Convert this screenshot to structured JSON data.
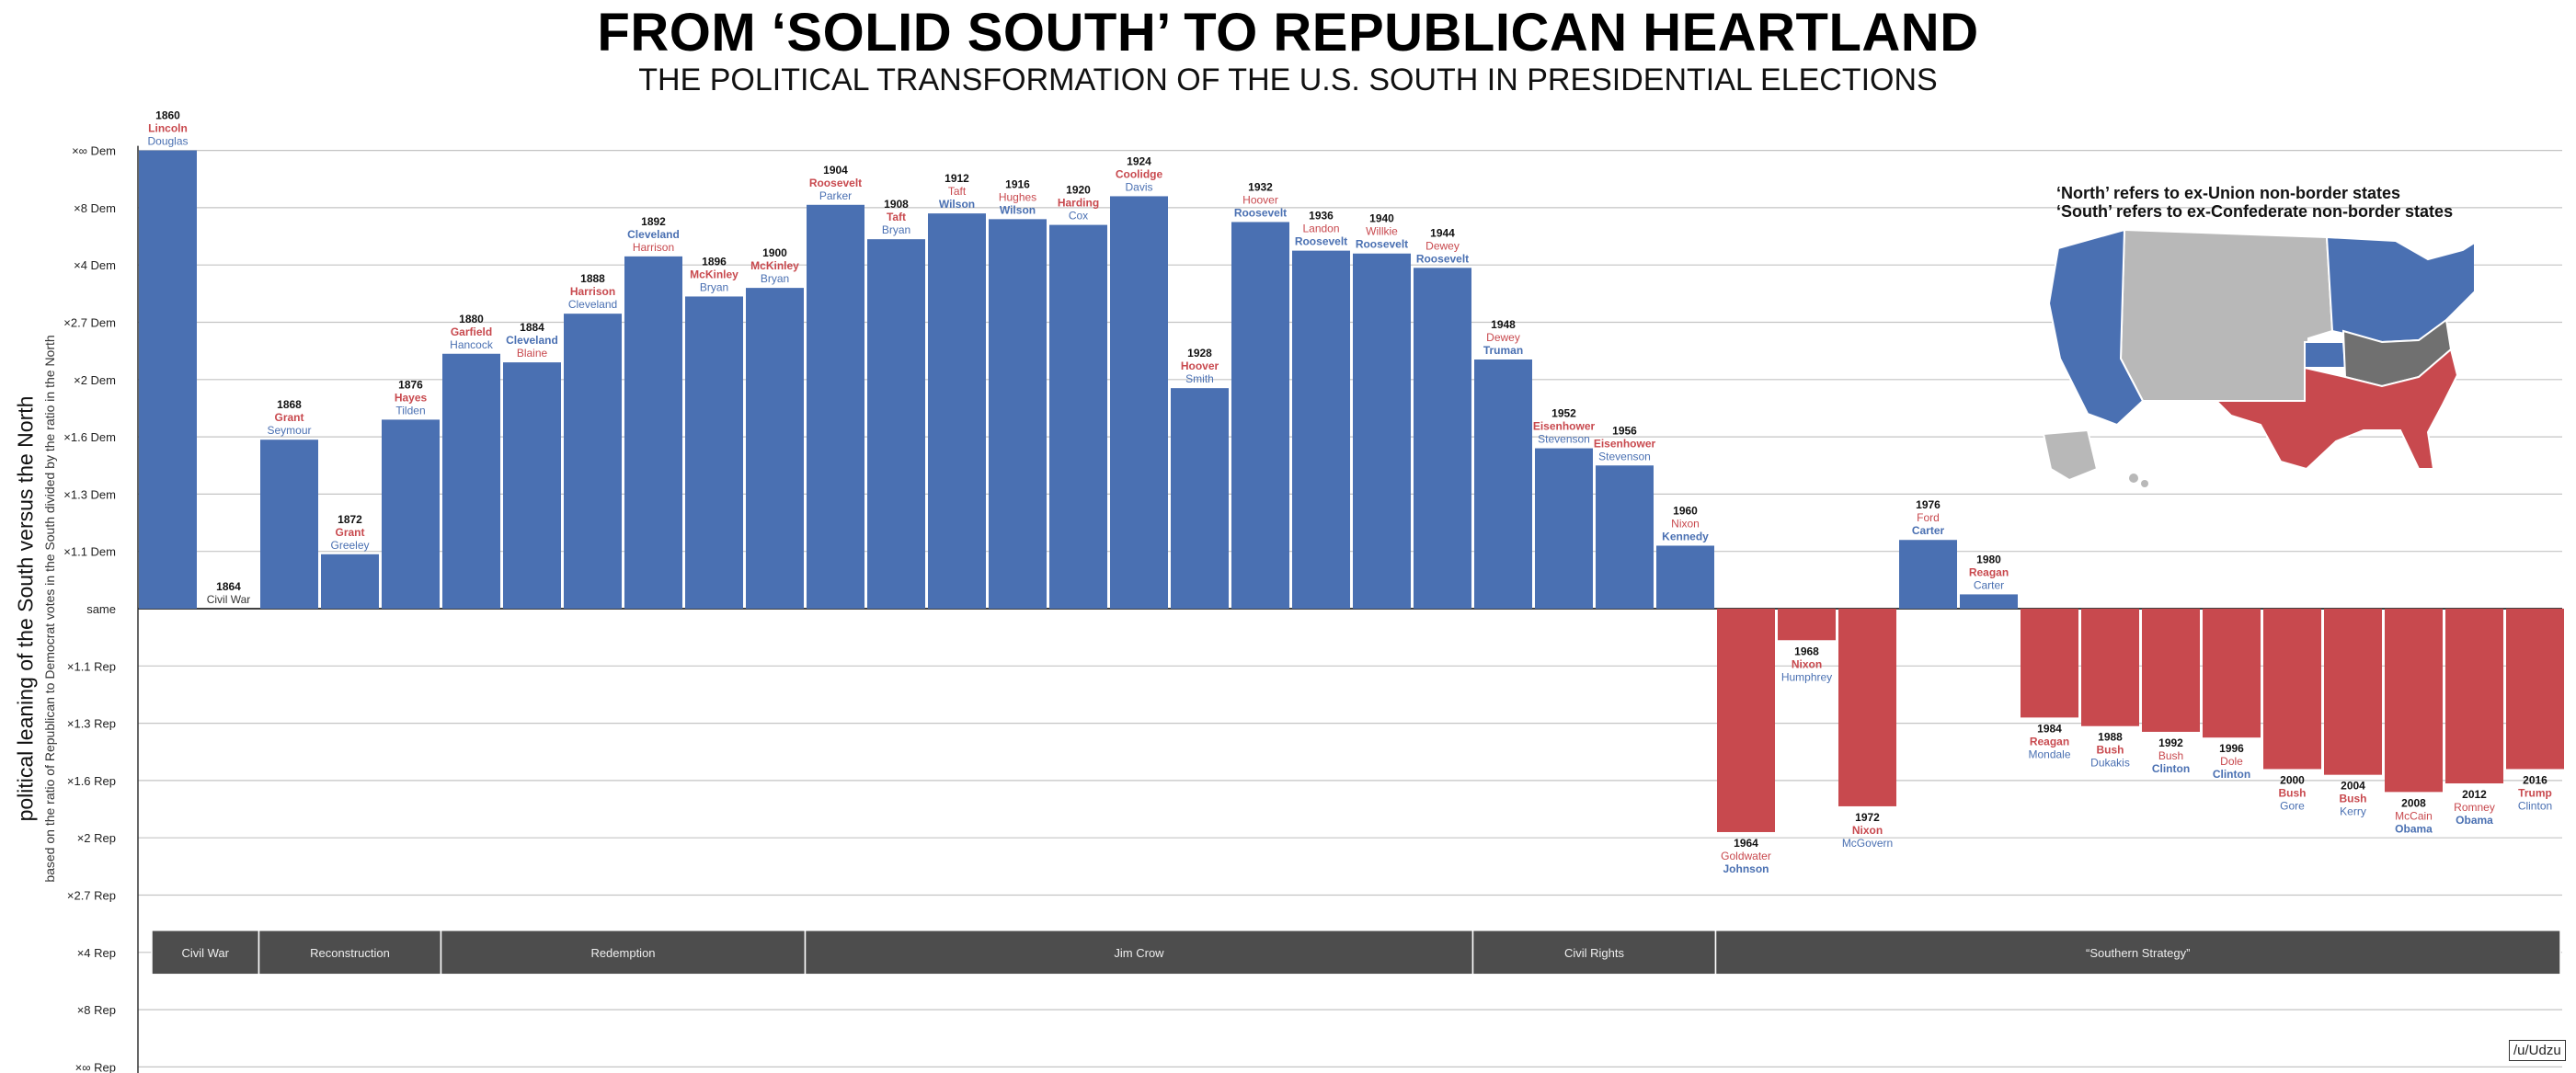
{
  "title": "FROM ‘SOLID SOUTH’ TO REPUBLICAN HEARTLAND",
  "subtitle": "THE POLITICAL TRANSFORMATION OF THE U.S. SOUTH IN PRESIDENTIAL ELECTIONS",
  "map_caption": [
    "‘North’ refers to ex-Union non-border states",
    "‘South’ refers to ex-Confederate non-border states"
  ],
  "credit": "/u/Udzu",
  "colors": {
    "dem": "#4a70b2",
    "rep": "#c8494e",
    "era_bg": "#4d4d4d",
    "map_gray": "#b8b8b8",
    "map_dark": "#707070"
  },
  "chart_data": {
    "type": "bar",
    "title": "FROM ‘SOLID SOUTH’ TO REPUBLICAN HEARTLAND",
    "subtitle": "THE POLITICAL TRANSFORMATION OF THE U.S. SOUTH IN PRESIDENTIAL ELECTIONS",
    "ylabel": "political leaning of the South versus the North",
    "ylabel_sub": "based on the ratio of Republican to Democrat votes in the South divided by the ratio in the North",
    "y_scale": "log (ratio)",
    "y_ticks": [
      "×∞ Dem",
      "×8 Dem",
      "×4 Dem",
      "×2.7 Dem",
      "×2 Dem",
      "×1.6 Dem",
      "×1.3 Dem",
      "×1.1 Dem",
      "same",
      "×1.1 Rep",
      "×1.3 Rep",
      "×1.6 Rep",
      "×2 Rep",
      "×2.7 Rep",
      "×4 Rep",
      "×8 Rep",
      "×∞ Rep"
    ],
    "value_units": "tick steps from 'same' (positive = South more Democratic)",
    "grid": true,
    "bars": [
      {
        "year": "1860",
        "value": 8.0,
        "winner": "Lincoln",
        "winner_party": "rep",
        "loser": "Douglas",
        "loser_party": "dem"
      },
      {
        "year": "1864",
        "value": 0,
        "note": "Civil War"
      },
      {
        "year": "1868",
        "value": 2.95,
        "winner": "Grant",
        "winner_party": "rep",
        "loser": "Seymour",
        "loser_party": "dem"
      },
      {
        "year": "1872",
        "value": 0.95,
        "winner": "Grant",
        "winner_party": "rep",
        "loser": "Greeley",
        "loser_party": "dem"
      },
      {
        "year": "1876",
        "value": 3.3,
        "winner": "Hayes",
        "winner_party": "rep",
        "loser": "Tilden",
        "loser_party": "dem"
      },
      {
        "year": "1880",
        "value": 4.45,
        "winner": "Garfield",
        "winner_party": "rep",
        "loser": "Hancock",
        "loser_party": "dem"
      },
      {
        "year": "1884",
        "value": 4.3,
        "winner": "Cleveland",
        "winner_party": "dem",
        "loser": "Blaine",
        "loser_party": "rep"
      },
      {
        "year": "1888",
        "value": 5.15,
        "winner": "Harrison",
        "winner_party": "rep",
        "loser": "Cleveland",
        "loser_party": "dem"
      },
      {
        "year": "1892",
        "value": 6.15,
        "winner": "Cleveland",
        "winner_party": "dem",
        "loser": "Harrison",
        "loser_party": "rep"
      },
      {
        "year": "1896",
        "value": 5.45,
        "winner": "McKinley",
        "winner_party": "rep",
        "loser": "Bryan",
        "loser_party": "dem"
      },
      {
        "year": "1900",
        "value": 5.6,
        "winner": "McKinley",
        "winner_party": "rep",
        "loser": "Bryan",
        "loser_party": "dem"
      },
      {
        "year": "1904",
        "value": 7.05,
        "winner": "Roosevelt",
        "winner_party": "rep",
        "loser": "Parker",
        "loser_party": "dem"
      },
      {
        "year": "1908",
        "value": 6.45,
        "winner": "Taft",
        "winner_party": "rep",
        "loser": "Bryan",
        "loser_party": "dem"
      },
      {
        "year": "1912",
        "value": 6.9,
        "winner": "Wilson",
        "winner_party": "dem",
        "loser": "Taft",
        "loser_party": "rep",
        "order": "loser_first"
      },
      {
        "year": "1916",
        "value": 6.8,
        "winner": "Wilson",
        "winner_party": "dem",
        "loser": "Hughes",
        "loser_party": "rep",
        "order": "loser_first"
      },
      {
        "year": "1920",
        "value": 6.7,
        "winner": "Harding",
        "winner_party": "rep",
        "loser": "Cox",
        "loser_party": "dem"
      },
      {
        "year": "1924",
        "value": 7.2,
        "winner": "Coolidge",
        "winner_party": "rep",
        "loser": "Davis",
        "loser_party": "dem"
      },
      {
        "year": "1928",
        "value": 3.85,
        "winner": "Hoover",
        "winner_party": "rep",
        "loser": "Smith",
        "loser_party": "dem"
      },
      {
        "year": "1932",
        "value": 6.75,
        "winner": "Roosevelt",
        "winner_party": "dem",
        "loser": "Hoover",
        "loser_party": "rep",
        "order": "loser_first"
      },
      {
        "year": "1936",
        "value": 6.25,
        "winner": "Roosevelt",
        "winner_party": "dem",
        "loser": "Landon",
        "loser_party": "rep",
        "order": "loser_first"
      },
      {
        "year": "1940",
        "value": 6.2,
        "winner": "Roosevelt",
        "winner_party": "dem",
        "loser": "Willkie",
        "loser_party": "rep",
        "order": "loser_first"
      },
      {
        "year": "1944",
        "value": 5.95,
        "winner": "Roosevelt",
        "winner_party": "dem",
        "loser": "Dewey",
        "loser_party": "rep",
        "order": "loser_first"
      },
      {
        "year": "1948",
        "value": 4.35,
        "winner": "Truman",
        "winner_party": "dem",
        "loser": "Dewey",
        "loser_party": "rep",
        "order": "loser_first"
      },
      {
        "year": "1952",
        "value": 2.8,
        "winner": "Eisenhower",
        "winner_party": "rep",
        "loser": "Stevenson",
        "loser_party": "dem"
      },
      {
        "year": "1956",
        "value": 2.5,
        "winner": "Eisenhower",
        "winner_party": "rep",
        "loser": "Stevenson",
        "loser_party": "dem"
      },
      {
        "year": "1960",
        "value": 1.1,
        "winner": "Kennedy",
        "winner_party": "dem",
        "loser": "Nixon",
        "loser_party": "rep",
        "order": "loser_first"
      },
      {
        "year": "1964",
        "value": -3.9,
        "winner": "Johnson",
        "winner_party": "dem",
        "loser": "Goldwater",
        "loser_party": "rep",
        "order": "loser_first"
      },
      {
        "year": "1968",
        "value": -0.55,
        "winner": "Nixon",
        "winner_party": "rep",
        "loser": "Humphrey",
        "loser_party": "dem"
      },
      {
        "year": "1972",
        "value": -3.45,
        "winner": "Nixon",
        "winner_party": "rep",
        "loser": "McGovern",
        "loser_party": "dem"
      },
      {
        "year": "1976",
        "value": 1.2,
        "winner": "Carter",
        "winner_party": "dem",
        "loser": "Ford",
        "loser_party": "rep",
        "order": "loser_first"
      },
      {
        "year": "1980",
        "value": 0.25,
        "winner": "Reagan",
        "winner_party": "rep",
        "loser": "Carter",
        "loser_party": "dem"
      },
      {
        "year": "1984",
        "value": -1.9,
        "winner": "Reagan",
        "winner_party": "rep",
        "loser": "Mondale",
        "loser_party": "dem"
      },
      {
        "year": "1988",
        "value": -2.05,
        "winner": "Bush",
        "winner_party": "rep",
        "loser": "Dukakis",
        "loser_party": "dem"
      },
      {
        "year": "1992",
        "value": -2.15,
        "winner": "Clinton",
        "winner_party": "dem",
        "loser": "Bush",
        "loser_party": "rep",
        "order": "loser_first"
      },
      {
        "year": "1996",
        "value": -2.25,
        "winner": "Clinton",
        "winner_party": "dem",
        "loser": "Dole",
        "loser_party": "rep",
        "order": "loser_first"
      },
      {
        "year": "2000",
        "value": -2.8,
        "winner": "Bush",
        "winner_party": "rep",
        "loser": "Gore",
        "loser_party": "dem"
      },
      {
        "year": "2004",
        "value": -2.9,
        "winner": "Bush",
        "winner_party": "rep",
        "loser": "Kerry",
        "loser_party": "dem"
      },
      {
        "year": "2008",
        "value": -3.2,
        "winner": "Obama",
        "winner_party": "dem",
        "loser": "McCain",
        "loser_party": "rep",
        "order": "loser_first"
      },
      {
        "year": "2012",
        "value": -3.05,
        "winner": "Obama",
        "winner_party": "dem",
        "loser": "Romney",
        "loser_party": "rep",
        "order": "loser_first"
      },
      {
        "year": "2016",
        "value": -2.8,
        "winner": "Trump",
        "winner_party": "rep",
        "loser": "Clinton",
        "loser_party": "dem"
      }
    ],
    "eras": [
      {
        "label": "Civil War",
        "from": "1860",
        "to": "1864"
      },
      {
        "label": "Reconstruction",
        "from": "1868",
        "to": "1876"
      },
      {
        "label": "Redemption",
        "from": "1880",
        "to": "1900"
      },
      {
        "label": "Jim Crow",
        "from": "1904",
        "to": "1944"
      },
      {
        "label": "Civil Rights",
        "from": "1948",
        "to": "1960"
      },
      {
        "label": "“Southern Strategy”",
        "from": "1964",
        "to": "2016"
      }
    ]
  }
}
